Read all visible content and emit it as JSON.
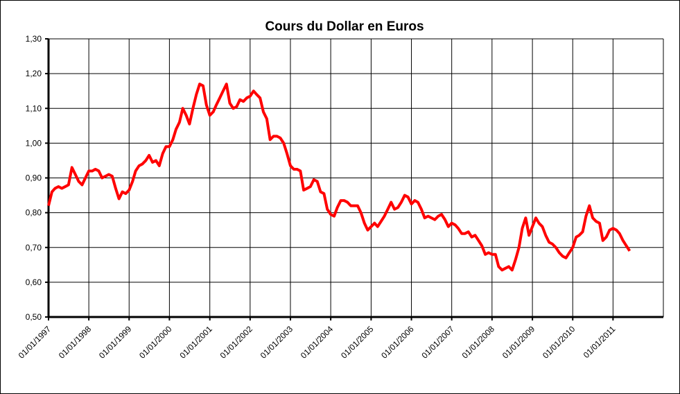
{
  "chart_data": {
    "type": "line",
    "title": "Cours du Dollar en Euros",
    "x": [
      "1997-01-01",
      "1997-02-01",
      "1997-03-01",
      "1997-04-01",
      "1997-05-01",
      "1997-06-01",
      "1997-07-01",
      "1997-08-01",
      "1997-09-01",
      "1997-10-01",
      "1997-11-01",
      "1997-12-01",
      "1998-01-01",
      "1998-02-01",
      "1998-03-01",
      "1998-04-01",
      "1998-05-01",
      "1998-06-01",
      "1998-07-01",
      "1998-08-01",
      "1998-09-01",
      "1998-10-01",
      "1998-11-01",
      "1998-12-01",
      "1999-01-01",
      "1999-02-01",
      "1999-03-01",
      "1999-04-01",
      "1999-05-01",
      "1999-06-01",
      "1999-07-01",
      "1999-08-01",
      "1999-09-01",
      "1999-10-01",
      "1999-11-01",
      "1999-12-01",
      "2000-01-01",
      "2000-02-01",
      "2000-03-01",
      "2000-04-01",
      "2000-05-01",
      "2000-06-01",
      "2000-07-01",
      "2000-08-01",
      "2000-09-01",
      "2000-10-01",
      "2000-11-01",
      "2000-12-01",
      "2001-01-01",
      "2001-02-01",
      "2001-03-01",
      "2001-04-01",
      "2001-05-01",
      "2001-06-01",
      "2001-07-01",
      "2001-08-01",
      "2001-09-01",
      "2001-10-01",
      "2001-11-01",
      "2001-12-01",
      "2002-01-01",
      "2002-02-01",
      "2002-03-01",
      "2002-04-01",
      "2002-05-01",
      "2002-06-01",
      "2002-07-01",
      "2002-08-01",
      "2002-09-01",
      "2002-10-01",
      "2002-11-01",
      "2002-12-01",
      "2003-01-01",
      "2003-02-01",
      "2003-03-01",
      "2003-04-01",
      "2003-05-01",
      "2003-06-01",
      "2003-07-01",
      "2003-08-01",
      "2003-09-01",
      "2003-10-01",
      "2003-11-01",
      "2003-12-01",
      "2004-01-01",
      "2004-02-01",
      "2004-03-01",
      "2004-04-01",
      "2004-05-01",
      "2004-06-01",
      "2004-07-01",
      "2004-08-01",
      "2004-09-01",
      "2004-10-01",
      "2004-11-01",
      "2004-12-01",
      "2005-01-01",
      "2005-02-01",
      "2005-03-01",
      "2005-04-01",
      "2005-05-01",
      "2005-06-01",
      "2005-07-01",
      "2005-08-01",
      "2005-09-01",
      "2005-10-01",
      "2005-11-01",
      "2005-12-01",
      "2006-01-01",
      "2006-02-01",
      "2006-03-01",
      "2006-04-01",
      "2006-05-01",
      "2006-06-01",
      "2006-07-01",
      "2006-08-01",
      "2006-09-01",
      "2006-10-01",
      "2006-11-01",
      "2006-12-01",
      "2007-01-01",
      "2007-02-01",
      "2007-03-01",
      "2007-04-01",
      "2007-05-01",
      "2007-06-01",
      "2007-07-01",
      "2007-08-01",
      "2007-09-01",
      "2007-10-01",
      "2007-11-01",
      "2007-12-01",
      "2008-01-01",
      "2008-02-01",
      "2008-03-01",
      "2008-04-01",
      "2008-05-01",
      "2008-06-01",
      "2008-07-01",
      "2008-08-01",
      "2008-09-01",
      "2008-10-01",
      "2008-11-01",
      "2008-12-01",
      "2009-01-01",
      "2009-02-01",
      "2009-03-01",
      "2009-04-01",
      "2009-05-01",
      "2009-06-01",
      "2009-07-01",
      "2009-08-01",
      "2009-09-01",
      "2009-10-01",
      "2009-11-01",
      "2009-12-01",
      "2010-01-01",
      "2010-02-01",
      "2010-03-01",
      "2010-04-01",
      "2010-05-01",
      "2010-06-01",
      "2010-07-01",
      "2010-08-01",
      "2010-09-01",
      "2010-10-01",
      "2010-11-01",
      "2010-12-01",
      "2011-01-01",
      "2011-02-01",
      "2011-03-01",
      "2011-04-01",
      "2011-05-01",
      "2011-06-01"
    ],
    "series": [
      {
        "name": "Cours du Dollar en Euros",
        "color": "#ff0000",
        "values": [
          0.82,
          0.86,
          0.87,
          0.875,
          0.87,
          0.875,
          0.88,
          0.93,
          0.91,
          0.89,
          0.88,
          0.9,
          0.92,
          0.92,
          0.925,
          0.92,
          0.9,
          0.905,
          0.91,
          0.905,
          0.87,
          0.84,
          0.86,
          0.855,
          0.865,
          0.89,
          0.92,
          0.935,
          0.94,
          0.95,
          0.965,
          0.945,
          0.95,
          0.935,
          0.97,
          0.99,
          0.99,
          1.01,
          1.04,
          1.06,
          1.1,
          1.08,
          1.055,
          1.1,
          1.14,
          1.17,
          1.165,
          1.11,
          1.08,
          1.09,
          1.11,
          1.13,
          1.15,
          1.17,
          1.115,
          1.1,
          1.105,
          1.125,
          1.12,
          1.13,
          1.135,
          1.15,
          1.14,
          1.13,
          1.09,
          1.07,
          1.01,
          1.02,
          1.02,
          1.015,
          1.0,
          0.97,
          0.935,
          0.925,
          0.925,
          0.92,
          0.865,
          0.87,
          0.875,
          0.895,
          0.89,
          0.86,
          0.855,
          0.81,
          0.795,
          0.79,
          0.815,
          0.835,
          0.835,
          0.83,
          0.82,
          0.82,
          0.82,
          0.8,
          0.77,
          0.75,
          0.76,
          0.77,
          0.76,
          0.775,
          0.79,
          0.81,
          0.83,
          0.81,
          0.815,
          0.83,
          0.85,
          0.845,
          0.825,
          0.835,
          0.83,
          0.81,
          0.785,
          0.79,
          0.785,
          0.78,
          0.79,
          0.795,
          0.78,
          0.76,
          0.77,
          0.765,
          0.755,
          0.74,
          0.74,
          0.745,
          0.73,
          0.735,
          0.72,
          0.705,
          0.68,
          0.685,
          0.68,
          0.68,
          0.645,
          0.635,
          0.64,
          0.645,
          0.635,
          0.665,
          0.7,
          0.755,
          0.785,
          0.735,
          0.76,
          0.785,
          0.77,
          0.76,
          0.735,
          0.715,
          0.71,
          0.7,
          0.685,
          0.675,
          0.67,
          0.685,
          0.7,
          0.73,
          0.735,
          0.745,
          0.79,
          0.82,
          0.785,
          0.775,
          0.77,
          0.72,
          0.73,
          0.75,
          0.755,
          0.75,
          0.74,
          0.72,
          0.705,
          0.69
        ]
      }
    ],
    "xlim": [
      "1997-01-01",
      "2012-04-01"
    ],
    "xticks": [
      {
        "value": "1997-01-01",
        "label": "01/01/1997"
      },
      {
        "value": "1998-01-01",
        "label": "01/01/1998"
      },
      {
        "value": "1999-01-01",
        "label": "01/01/1999"
      },
      {
        "value": "2000-01-01",
        "label": "01/01/2000"
      },
      {
        "value": "2001-01-01",
        "label": "01/01/2001"
      },
      {
        "value": "2002-01-01",
        "label": "01/01/2002"
      },
      {
        "value": "2003-01-01",
        "label": "01/01/2003"
      },
      {
        "value": "2004-01-01",
        "label": "01/01/2004"
      },
      {
        "value": "2005-01-01",
        "label": "01/01/2005"
      },
      {
        "value": "2006-01-01",
        "label": "01/01/2006"
      },
      {
        "value": "2007-01-01",
        "label": "01/01/2007"
      },
      {
        "value": "2008-01-01",
        "label": "01/01/2008"
      },
      {
        "value": "2009-01-01",
        "label": "01/01/2009"
      },
      {
        "value": "2010-01-01",
        "label": "01/01/2010"
      },
      {
        "value": "2011-01-01",
        "label": "01/01/2011"
      }
    ],
    "ylim": [
      0.5,
      1.3
    ],
    "yticks": [
      {
        "value": 0.5,
        "label": "0,50"
      },
      {
        "value": 0.6,
        "label": "0,60"
      },
      {
        "value": 0.7,
        "label": "0,70"
      },
      {
        "value": 0.8,
        "label": "0,80"
      },
      {
        "value": 0.9,
        "label": "0,90"
      },
      {
        "value": 1.0,
        "label": "1,00"
      },
      {
        "value": 1.1,
        "label": "1,10"
      },
      {
        "value": 1.2,
        "label": "1,20"
      },
      {
        "value": 1.3,
        "label": "1,30"
      }
    ],
    "grid": true
  }
}
